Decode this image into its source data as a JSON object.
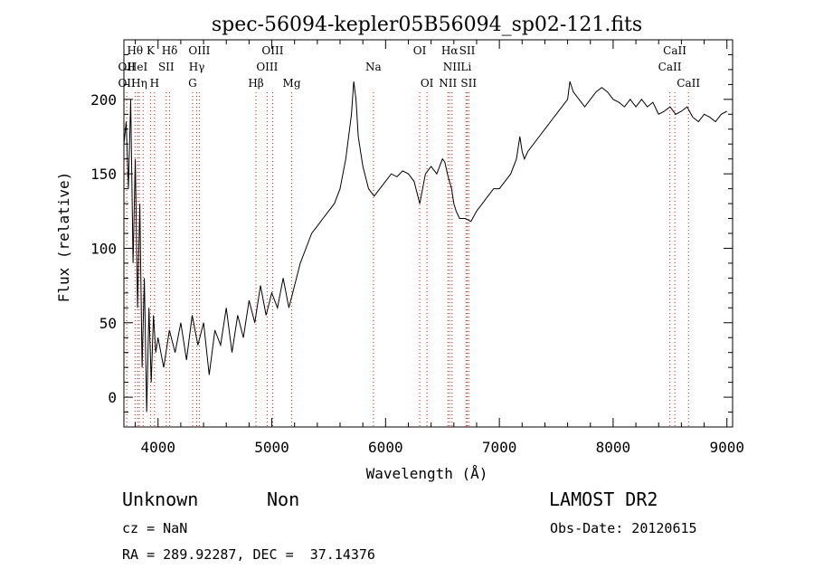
{
  "chart_data": {
    "type": "line",
    "title": "spec-56094-kepler05B56094_sp02-121.fits",
    "xlabel": "Wavelength (Å)",
    "ylabel": "Flux (relative)",
    "xlim": [
      3700,
      9050
    ],
    "ylim": [
      -20,
      240
    ],
    "xticks": [
      4000,
      5000,
      6000,
      7000,
      8000,
      9000
    ],
    "yticks": [
      0,
      50,
      100,
      150,
      200
    ],
    "grid": false,
    "line_color": "#000000",
    "marker_color": "#ff0000",
    "series": [
      {
        "x": [
          3700,
          3720,
          3740,
          3760,
          3780,
          3800,
          3820,
          3840,
          3860,
          3880,
          3900,
          3920,
          3940,
          3960,
          3980,
          4000,
          4050,
          4100,
          4150,
          4200,
          4250,
          4300,
          4350,
          4400,
          4450,
          4500,
          4550,
          4600,
          4650,
          4700,
          4750,
          4800,
          4850,
          4900,
          4950,
          5000,
          5050,
          5100,
          5150,
          5200,
          5250,
          5300,
          5350,
          5400,
          5450,
          5500,
          5550,
          5600,
          5650,
          5700,
          5720,
          5740,
          5760,
          5800,
          5850,
          5900,
          5950,
          6000,
          6050,
          6100,
          6150,
          6200,
          6250,
          6300,
          6350,
          6400,
          6450,
          6500,
          6520,
          6550,
          6580,
          6600,
          6620,
          6650,
          6700,
          6750,
          6800,
          6850,
          6900,
          6950,
          7000,
          7050,
          7100,
          7150,
          7180,
          7200,
          7220,
          7250,
          7300,
          7350,
          7400,
          7450,
          7500,
          7550,
          7600,
          7620,
          7650,
          7700,
          7750,
          7800,
          7850,
          7900,
          7950,
          8000,
          8050,
          8100,
          8150,
          8200,
          8250,
          8300,
          8350,
          8400,
          8450,
          8500,
          8550,
          8600,
          8650,
          8700,
          8750,
          8800,
          8850,
          8900,
          8950,
          9000
        ],
        "y": [
          170,
          185,
          140,
          200,
          90,
          160,
          60,
          130,
          20,
          80,
          -10,
          60,
          10,
          55,
          30,
          40,
          20,
          45,
          30,
          50,
          25,
          55,
          35,
          50,
          15,
          45,
          35,
          60,
          30,
          55,
          40,
          65,
          50,
          75,
          55,
          70,
          60,
          80,
          60,
          75,
          90,
          100,
          110,
          115,
          120,
          125,
          130,
          140,
          160,
          190,
          212,
          200,
          175,
          155,
          140,
          135,
          140,
          145,
          150,
          148,
          152,
          150,
          145,
          130,
          150,
          155,
          150,
          160,
          158,
          148,
          140,
          130,
          125,
          120,
          120,
          118,
          125,
          130,
          135,
          140,
          140,
          145,
          150,
          160,
          175,
          165,
          160,
          165,
          170,
          175,
          180,
          185,
          190,
          195,
          200,
          212,
          205,
          200,
          195,
          200,
          205,
          208,
          205,
          200,
          198,
          195,
          200,
          195,
          200,
          195,
          198,
          190,
          192,
          195,
          190,
          192,
          195,
          188,
          185,
          190,
          188,
          185,
          190,
          192
        ]
      }
    ],
    "lines": [
      {
        "wave": 3725,
        "labels": [
          "",
          "OII",
          "OII"
        ]
      },
      {
        "wave": 3798,
        "labels": [
          "Hθ",
          "",
          ""
        ]
      },
      {
        "wave": 3820,
        "labels": [
          "",
          "HeI",
          ""
        ]
      },
      {
        "wave": 3835,
        "labels": [
          "",
          "",
          "Hη"
        ]
      },
      {
        "wave": 3869,
        "labels": [
          "",
          "",
          ""
        ]
      },
      {
        "wave": 3934,
        "labels": [
          "K",
          "",
          ""
        ]
      },
      {
        "wave": 3969,
        "labels": [
          "",
          "",
          "H"
        ]
      },
      {
        "wave": 4072,
        "labels": [
          "",
          "SII",
          ""
        ]
      },
      {
        "wave": 4102,
        "labels": [
          "Hδ",
          "",
          ""
        ]
      },
      {
        "wave": 4304,
        "labels": [
          "",
          "",
          "G"
        ]
      },
      {
        "wave": 4340,
        "labels": [
          "",
          "Hγ",
          ""
        ]
      },
      {
        "wave": 4363,
        "labels": [
          "OIII",
          "",
          ""
        ]
      },
      {
        "wave": 4861,
        "labels": [
          "",
          "",
          "Hβ"
        ]
      },
      {
        "wave": 4959,
        "labels": [
          "",
          "OIII",
          ""
        ]
      },
      {
        "wave": 5007,
        "labels": [
          "OIII",
          "",
          ""
        ]
      },
      {
        "wave": 5175,
        "labels": [
          "",
          "",
          "Mg"
        ]
      },
      {
        "wave": 5893,
        "labels": [
          "",
          "Na",
          ""
        ]
      },
      {
        "wave": 6300,
        "labels": [
          "OI",
          "",
          ""
        ]
      },
      {
        "wave": 6364,
        "labels": [
          "",
          "",
          "OI"
        ]
      },
      {
        "wave": 6548,
        "labels": [
          "",
          "",
          "NII"
        ]
      },
      {
        "wave": 6563,
        "labels": [
          "Hα",
          "",
          ""
        ]
      },
      {
        "wave": 6584,
        "labels": [
          "",
          "NII",
          ""
        ]
      },
      {
        "wave": 6707,
        "labels": [
          "",
          "Li",
          ""
        ]
      },
      {
        "wave": 6717,
        "labels": [
          "SII",
          "",
          ""
        ]
      },
      {
        "wave": 6731,
        "labels": [
          "",
          "",
          "SII"
        ]
      },
      {
        "wave": 8498,
        "labels": [
          "",
          "CaII",
          ""
        ]
      },
      {
        "wave": 8542,
        "labels": [
          "CaII",
          "",
          ""
        ]
      },
      {
        "wave": 8662,
        "labels": [
          "",
          "",
          "CaII"
        ]
      }
    ]
  },
  "info": {
    "class": "Unknown",
    "subclass": "Non",
    "survey": "LAMOST DR2",
    "cz": "cz = NaN",
    "obs_date": "Obs-Date: 20120615",
    "coords": "RA = 289.92287, DEC =  37.14376"
  }
}
